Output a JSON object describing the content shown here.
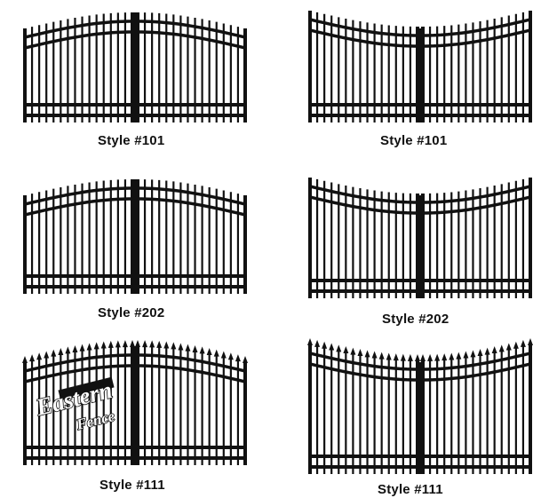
{
  "gates": [
    {
      "label": "Style #101",
      "arch": "convex",
      "spear_tops": false,
      "image": "style-101-convex-gate"
    },
    {
      "label": "Style #101",
      "arch": "concave",
      "spear_tops": false,
      "image": "style-101-concave-gate"
    },
    {
      "label": "Style #202",
      "arch": "convex",
      "spear_tops": false,
      "image": "style-202-convex-gate"
    },
    {
      "label": "Style #202",
      "arch": "concave",
      "spear_tops": false,
      "image": "style-202-concave-gate"
    },
    {
      "label": "Style #111",
      "arch": "convex",
      "spear_tops": true,
      "image": "style-111-convex-gate"
    },
    {
      "label": "Style #111",
      "arch": "concave",
      "spear_tops": true,
      "image": "style-111-concave-gate"
    }
  ],
  "watermark": {
    "line1": "Eastern",
    "line2": "Fence"
  },
  "colors": {
    "ink": "#111111",
    "background": "#ffffff"
  }
}
